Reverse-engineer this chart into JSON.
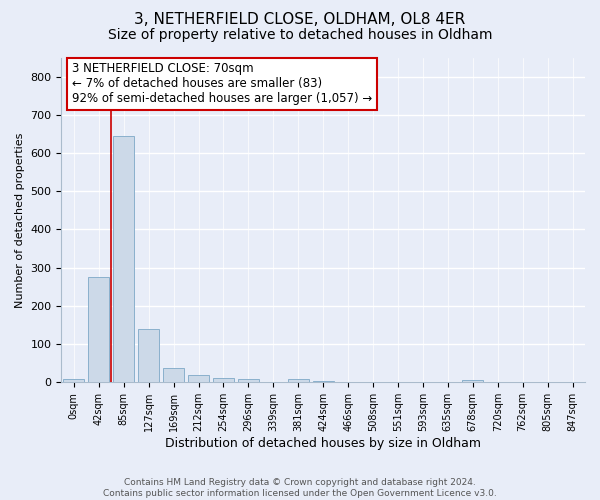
{
  "title1": "3, NETHERFIELD CLOSE, OLDHAM, OL8 4ER",
  "title2": "Size of property relative to detached houses in Oldham",
  "xlabel": "Distribution of detached houses by size in Oldham",
  "ylabel": "Number of detached properties",
  "bin_labels": [
    "0sqm",
    "42sqm",
    "85sqm",
    "127sqm",
    "169sqm",
    "212sqm",
    "254sqm",
    "296sqm",
    "339sqm",
    "381sqm",
    "424sqm",
    "466sqm",
    "508sqm",
    "551sqm",
    "593sqm",
    "635sqm",
    "678sqm",
    "720sqm",
    "762sqm",
    "805sqm",
    "847sqm"
  ],
  "bar_values": [
    8,
    275,
    645,
    140,
    38,
    18,
    12,
    8,
    0,
    10,
    3,
    2,
    0,
    0,
    0,
    0,
    5,
    0,
    0,
    0,
    0
  ],
  "bar_color": "#ccd9e8",
  "bar_edgecolor": "#8ab0cc",
  "ylim": [
    0,
    850
  ],
  "yticks": [
    0,
    100,
    200,
    300,
    400,
    500,
    600,
    700,
    800
  ],
  "vline_x": 1.5,
  "vline_color": "#cc0000",
  "annotation_line1": "3 NETHERFIELD CLOSE: 70sqm",
  "annotation_line2": "← 7% of detached houses are smaller (83)",
  "annotation_line3": "92% of semi-detached houses are larger (1,057) →",
  "annotation_box_color": "#ffffff",
  "annotation_box_edgecolor": "#cc0000",
  "footer_line1": "Contains HM Land Registry data © Crown copyright and database right 2024.",
  "footer_line2": "Contains public sector information licensed under the Open Government Licence v3.0.",
  "bg_color": "#e8edf8",
  "plot_bg_color": "#e8edf8",
  "grid_color": "#ffffff",
  "title1_fontsize": 11,
  "title2_fontsize": 10,
  "xlabel_fontsize": 9,
  "ylabel_fontsize": 8
}
